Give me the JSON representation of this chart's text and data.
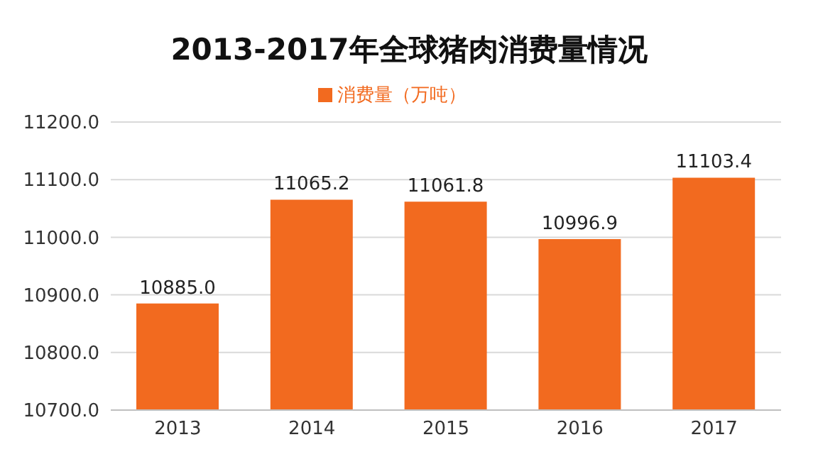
{
  "chart_data": {
    "type": "bar",
    "title": "2013-2017年全球猪肉消费量情况",
    "categories": [
      "2013",
      "2014",
      "2015",
      "2016",
      "2017"
    ],
    "series": [
      {
        "name": "消费量（万吨）",
        "color": "#f26a1f",
        "values": [
          10885.0,
          11065.2,
          11061.8,
          10996.9,
          11103.4
        ],
        "value_labels": [
          "10885.0",
          "11065.2",
          "11061.8",
          "10996.9",
          "11103.4"
        ]
      }
    ],
    "ylim": [
      10700,
      11200
    ],
    "yticks": [
      {
        "value": 10700,
        "label": "10700.0"
      },
      {
        "value": 10800,
        "label": "10800.0"
      },
      {
        "value": 10900,
        "label": "10900.0"
      },
      {
        "value": 11000,
        "label": "11000.0"
      },
      {
        "value": 11100,
        "label": "11100.0"
      },
      {
        "value": 11200,
        "label": "11200.0"
      }
    ],
    "grid": "y",
    "legend": "top"
  }
}
